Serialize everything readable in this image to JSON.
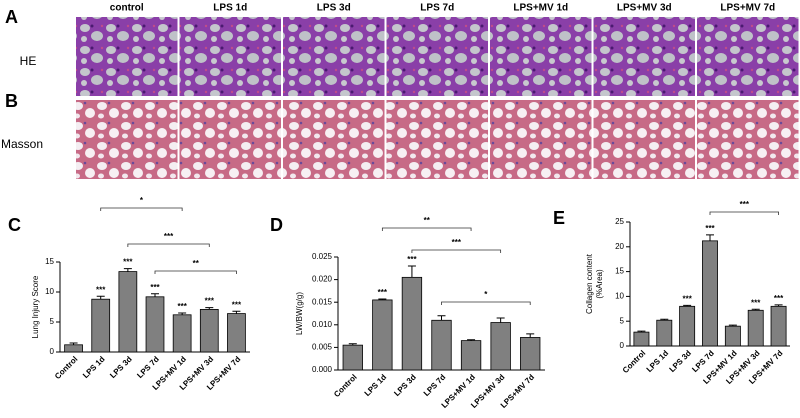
{
  "figure": {
    "columns": [
      "control",
      "LPS 1d",
      "LPS 3d",
      "LPS 7d",
      "LPS+MV 1d",
      "LPS+MV 3d",
      "LPS+MV 7d"
    ],
    "rows": [
      "HE",
      "Masson"
    ],
    "panel_labels": [
      "A",
      "B",
      "C",
      "D",
      "E"
    ]
  },
  "chart_data": [
    {
      "type": "bar",
      "ylabel": "Lung Injury Score",
      "categories": [
        "Control",
        "LPS 1d",
        "LPS 3d",
        "LPS 7d",
        "LPS+MV 1d",
        "LPS+MV 3d",
        "LPS+MV 7d"
      ],
      "values": [
        1.2,
        8.8,
        13.4,
        9.2,
        6.2,
        7.1,
        6.4
      ],
      "errors": [
        0.3,
        0.5,
        0.5,
        0.5,
        0.3,
        0.3,
        0.4
      ],
      "value_labels": [
        null,
        "***",
        "***",
        "***",
        "***",
        "***",
        "***"
      ],
      "brackets": [
        {
          "from": "LPS 1d",
          "to": "LPS+MV 1d",
          "label": "*"
        },
        {
          "from": "LPS 3d",
          "to": "LPS+MV 3d",
          "label": "***"
        },
        {
          "from": "LPS 7d",
          "to": "LPS+MV 7d",
          "label": "**"
        }
      ],
      "color": "#808080",
      "ylim": [
        0,
        15
      ],
      "yticks": [
        0,
        5,
        10,
        15
      ]
    },
    {
      "type": "bar",
      "ylabel": "LW/BW(g/g)",
      "categories": [
        "Control",
        "LPS 1d",
        "LPS 3d",
        "LPS 7d",
        "LPS+MV 1d",
        "LPS+MV 3d",
        "LPS+MV 7d"
      ],
      "values": [
        0.0055,
        0.0155,
        0.0205,
        0.011,
        0.0065,
        0.0105,
        0.0072
      ],
      "errors": [
        0.0003,
        0.0002,
        0.0025,
        0.001,
        0.0002,
        0.001,
        0.0008
      ],
      "value_labels": [
        null,
        "***",
        "***",
        null,
        null,
        null,
        null
      ],
      "brackets": [
        {
          "from": "LPS 1d",
          "to": "LPS+MV 1d",
          "label": "**"
        },
        {
          "from": "LPS 3d",
          "to": "LPS+MV 3d",
          "label": "***"
        },
        {
          "from": "LPS 7d",
          "to": "LPS+MV 7d",
          "label": "*"
        }
      ],
      "color": "#808080",
      "ylim": [
        0,
        0.025
      ],
      "yticks": [
        {
          "value": 0,
          "label": "0.000"
        },
        {
          "value": 0.005,
          "label": "0.005"
        },
        {
          "value": 0.01,
          "label": "0.010"
        },
        {
          "value": 0.015,
          "label": "0.015"
        },
        {
          "value": 0.02,
          "label": "0.020"
        },
        {
          "value": 0.025,
          "label": "0.025"
        }
      ]
    },
    {
      "type": "bar",
      "ylabel": [
        "Collagen content",
        "(%Area)"
      ],
      "categories": [
        "Control",
        "LPS 1d",
        "LPS 3d",
        "LPS 7d",
        "LPS+MV 1d",
        "LPS+MV 3d",
        "LPS+MV 7d"
      ],
      "values": [
        2.8,
        5.2,
        8.0,
        21.2,
        4.0,
        7.2,
        8.0
      ],
      "errors": [
        0.2,
        0.2,
        0.2,
        1.2,
        0.2,
        0.2,
        0.3
      ],
      "value_labels": [
        null,
        null,
        "***",
        "***",
        null,
        "***",
        "***"
      ],
      "brackets": [
        {
          "from": "LPS 7d",
          "to": "LPS+MV 7d",
          "label": "***"
        }
      ],
      "color": "#808080",
      "ylim": [
        0,
        25
      ],
      "yticks": [
        0,
        5,
        10,
        15,
        20,
        25
      ]
    }
  ]
}
